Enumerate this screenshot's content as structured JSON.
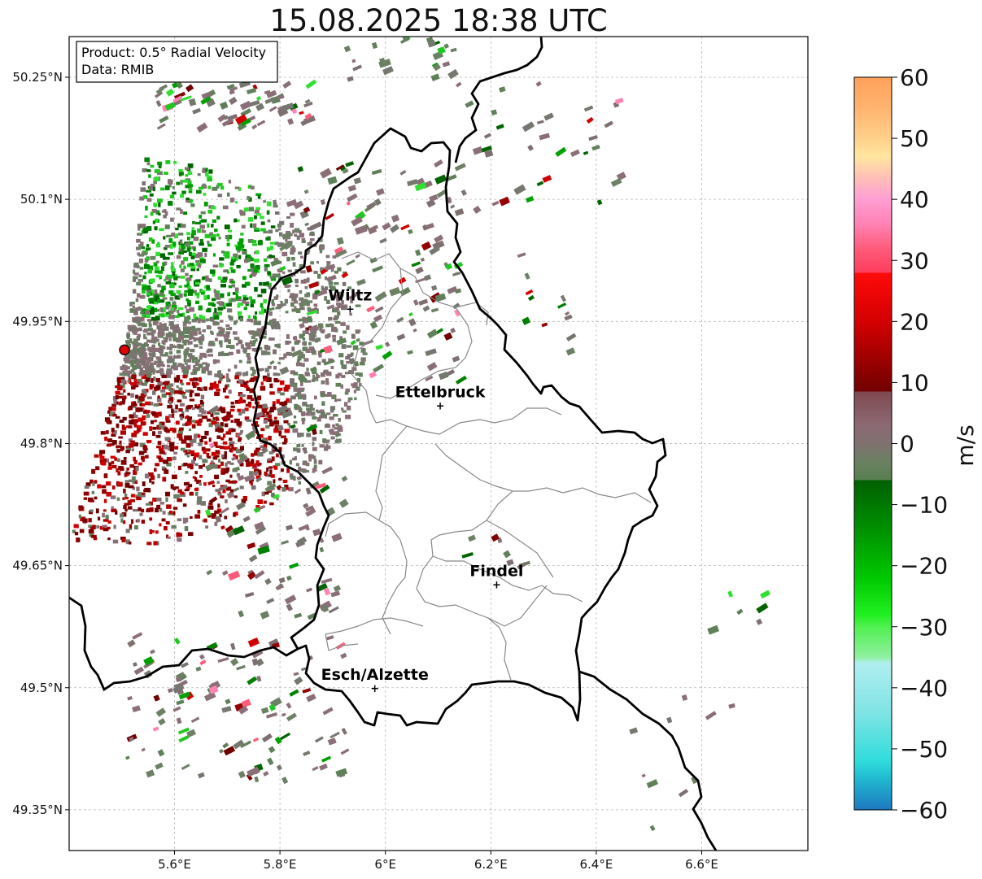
{
  "title": "15.08.2025 18:38 UTC",
  "info": {
    "line1": "Product: 0.5° Radial Velocity",
    "line2": "Data: RMIB"
  },
  "map": {
    "lon_range": [
      5.4,
      6.8
    ],
    "lat_range": [
      49.3,
      50.3
    ],
    "x_ticks": [
      {
        "value": 5.6,
        "label": "5.6°E"
      },
      {
        "value": 5.8,
        "label": "5.8°E"
      },
      {
        "value": 6.0,
        "label": "6°E"
      },
      {
        "value": 6.2,
        "label": "6.2°E"
      },
      {
        "value": 6.4,
        "label": "6.4°E"
      },
      {
        "value": 6.6,
        "label": "6.6°E"
      }
    ],
    "y_ticks": [
      {
        "value": 50.25,
        "label": "50.25°N"
      },
      {
        "value": 50.1,
        "label": "50.1°N"
      },
      {
        "value": 49.95,
        "label": "49.95°N"
      },
      {
        "value": 49.8,
        "label": "49.8°N"
      },
      {
        "value": 49.65,
        "label": "49.65°N"
      },
      {
        "value": 49.5,
        "label": "49.5°N"
      },
      {
        "value": 49.35,
        "label": "49.35°N"
      }
    ],
    "grid": true,
    "radar_site": {
      "lon": 5.505,
      "lat": 49.915
    },
    "cities": [
      {
        "name": "Wiltz",
        "lon": 5.933,
        "lat": 49.966
      },
      {
        "name": "Ettelbruck",
        "lon": 6.104,
        "lat": 49.847
      },
      {
        "name": "Findel",
        "lon": 6.211,
        "lat": 49.627
      },
      {
        "name": "Esch/Alzette",
        "lon": 5.98,
        "lat": 49.5
      }
    ]
  },
  "colorbar": {
    "label": "m/s",
    "range": [
      -60,
      60
    ],
    "ticks": [
      60,
      50,
      40,
      30,
      20,
      10,
      0,
      -10,
      -20,
      -30,
      -40,
      -50,
      -60
    ],
    "tick_labels": [
      "60",
      "50",
      "40",
      "30",
      "20",
      "10",
      "0",
      "−10",
      "−20",
      "−30",
      "−40",
      "−50",
      "−60"
    ],
    "stops": [
      {
        "v": 60,
        "c": "#ffa15a"
      },
      {
        "v": 55,
        "c": "#ffb470"
      },
      {
        "v": 50,
        "c": "#ffd08a"
      },
      {
        "v": 47,
        "c": "#ffe6a0"
      },
      {
        "v": 44,
        "c": "#ffc4b4"
      },
      {
        "v": 40,
        "c": "#ff9ed4"
      },
      {
        "v": 36,
        "c": "#ff82b4"
      },
      {
        "v": 32,
        "c": "#ff5c7c"
      },
      {
        "v": 28,
        "c": "#ff3c5c"
      },
      {
        "v": 28,
        "c": "#ff0a0a"
      },
      {
        "v": 20,
        "c": "#d40000"
      },
      {
        "v": 14,
        "c": "#a00000"
      },
      {
        "v": 8.5,
        "c": "#700000"
      },
      {
        "v": 8.5,
        "c": "#804850"
      },
      {
        "v": 3,
        "c": "#8c6a74"
      },
      {
        "v": 0,
        "c": "#807070"
      },
      {
        "v": -3,
        "c": "#6a8060"
      },
      {
        "v": -6,
        "c": "#588050"
      },
      {
        "v": -6,
        "c": "#006000"
      },
      {
        "v": -14,
        "c": "#009000"
      },
      {
        "v": -22,
        "c": "#00c800"
      },
      {
        "v": -28,
        "c": "#20f020"
      },
      {
        "v": -30,
        "c": "#50f050"
      },
      {
        "v": -35,
        "c": "#90f0a0"
      },
      {
        "v": -36,
        "c": "#b0eef0"
      },
      {
        "v": -44,
        "c": "#80e4e4"
      },
      {
        "v": -52,
        "c": "#30dcdc"
      },
      {
        "v": -55,
        "c": "#20b8d0"
      },
      {
        "v": -60,
        "c": "#1e78c0"
      }
    ]
  }
}
